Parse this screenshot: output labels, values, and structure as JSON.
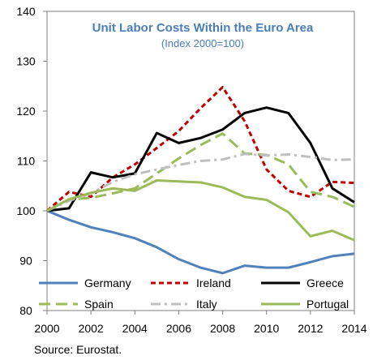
{
  "chart_data": {
    "type": "line",
    "title": "Unit Labor Costs Within the Euro Area",
    "subtitle": "(Index 2000=100)",
    "title_color": "#4a7ebb",
    "xlabel": "",
    "ylabel": "",
    "xlim": [
      2000,
      2014
    ],
    "ylim": [
      80,
      140
    ],
    "x_ticks": [
      2000,
      2002,
      2004,
      2006,
      2008,
      2010,
      2012,
      2014
    ],
    "y_ticks": [
      80,
      90,
      100,
      110,
      120,
      130,
      140
    ],
    "grid": false,
    "legend_placement": "bottom-inside",
    "x": [
      2000,
      2001,
      2002,
      2003,
      2004,
      2005,
      2006,
      2007,
      2008,
      2009,
      2010,
      2011,
      2012,
      2013,
      2014
    ],
    "series": [
      {
        "name": "Germany",
        "color": "#4f81bd",
        "dash": "solid",
        "values": [
          100,
          98.2,
          96.7,
          95.7,
          94.5,
          92.7,
          90.3,
          88.6,
          87.5,
          89,
          88.6,
          88.6,
          89.7,
          90.9,
          91.4
        ]
      },
      {
        "name": "Ireland",
        "color": "#c00000",
        "dash": "dash",
        "values": [
          100,
          103.8,
          102.8,
          106.7,
          109.3,
          112.6,
          116,
          120.6,
          124.8,
          118,
          108.3,
          104,
          102.8,
          105.8,
          105.6
        ]
      },
      {
        "name": "Greece",
        "color": "#000000",
        "dash": "solid",
        "values": [
          100,
          100.5,
          107.7,
          106.7,
          107.5,
          115.6,
          113.6,
          114.6,
          116.3,
          119.6,
          120.7,
          119.6,
          113.6,
          104.5,
          101.7
        ]
      },
      {
        "name": "Spain",
        "color": "#9bbb59",
        "dash": "longdash",
        "values": [
          100,
          102.3,
          102.6,
          103.5,
          104.5,
          107.5,
          110.5,
          113.2,
          115.5,
          111.5,
          111.2,
          109.3,
          103.8,
          102.8,
          100.8
        ]
      },
      {
        "name": "Italy",
        "color": "#bfbfbf",
        "dash": "dashdot",
        "values": [
          100,
          102,
          103.5,
          105.8,
          107.3,
          108.3,
          109.2,
          110,
          110.3,
          111.4,
          111.1,
          111.3,
          110.8,
          110.2,
          110.3
        ]
      },
      {
        "name": "Portugal",
        "color": "#9bbb59",
        "dash": "solid",
        "values": [
          100,
          102.3,
          103.6,
          104.5,
          104,
          106.1,
          105.9,
          105.7,
          104.7,
          102.8,
          102.2,
          99.7,
          94.9,
          96,
          94.1
        ]
      }
    ]
  },
  "source": "Source:  Eurostat."
}
